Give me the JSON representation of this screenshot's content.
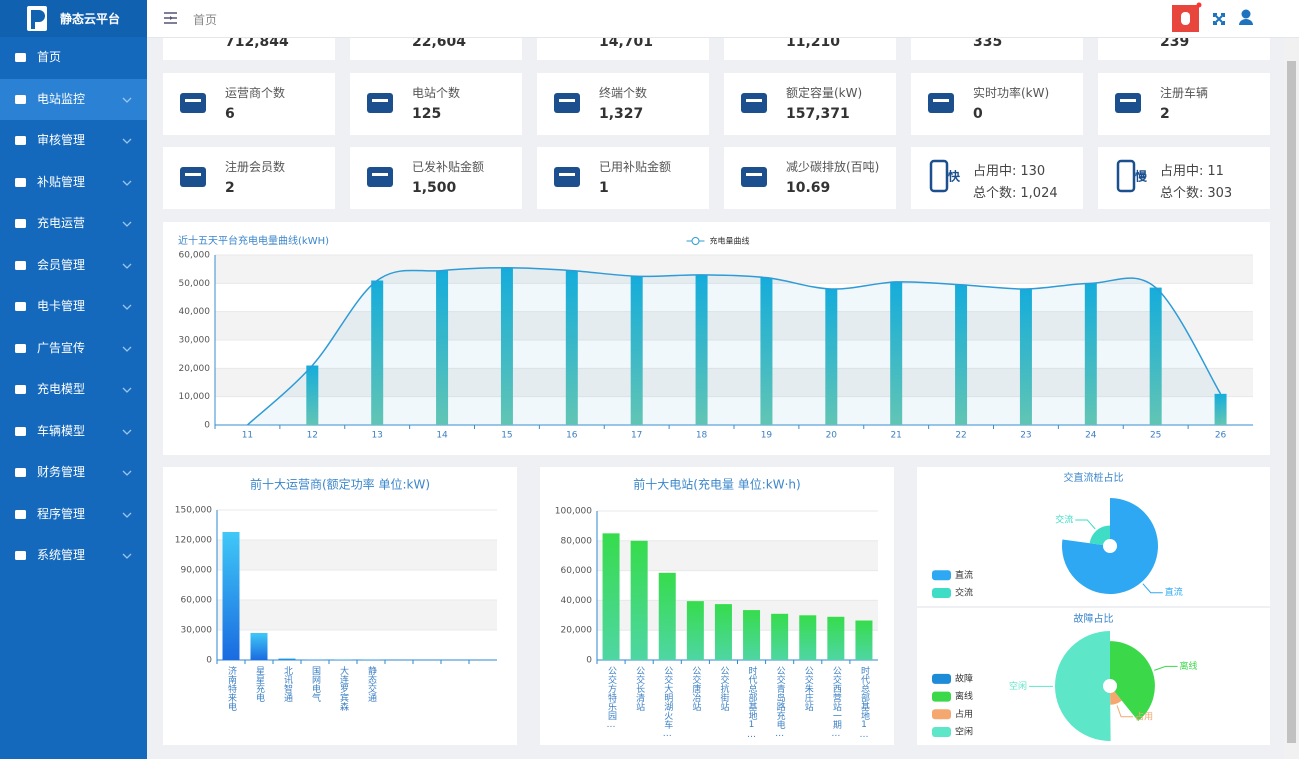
{
  "header": {
    "logo": "静态云平台",
    "breadcrumb": "首页"
  },
  "menu": [
    "首页",
    "电站监控",
    "审核管理",
    "补贴管理",
    "充电运营",
    "会员管理",
    "电卡管理",
    "广告宣传",
    "充电模型",
    "车辆模型",
    "财务管理",
    "程序管理",
    "系统管理"
  ],
  "top_cards": [
    "712,844",
    "22,604",
    "14,701",
    "11,210",
    "335",
    "239"
  ],
  "cards": [
    {
      "label": "运营商个数",
      "value": "6"
    },
    {
      "label": "电站个数",
      "value": "125"
    },
    {
      "label": "终端个数",
      "value": "1,327"
    },
    {
      "label": "额定容量(kW)",
      "value": "157,371"
    },
    {
      "label": "实时功率(kW)",
      "value": "0"
    },
    {
      "label": "注册车辆",
      "value": "2"
    },
    {
      "label": "注册会员数",
      "value": "2"
    },
    {
      "label": "已发补贴金额",
      "value": "1,500"
    },
    {
      "label": "已用补贴金额",
      "value": "1"
    },
    {
      "label": "减少碳排放(百吨)",
      "value": "10.69"
    }
  ],
  "pile_cards": [
    {
      "icon": "快",
      "occupied_label": "占用中:",
      "occupied": "130",
      "total_label": "总个数:",
      "total": "1,024"
    },
    {
      "icon": "慢",
      "occupied_label": "占用中:",
      "occupied": "11",
      "total_label": "总个数:",
      "total": "303"
    }
  ],
  "chart_data": [
    {
      "type": "line",
      "bars": true,
      "title": "近十五天平台充电电量曲线(kWH)",
      "legend": "top-center",
      "grid": true,
      "bar_colors": [
        "#14aedc",
        "#66c8b2"
      ],
      "categories": [
        "11",
        "12",
        "13",
        "14",
        "15",
        "16",
        "17",
        "18",
        "19",
        "20",
        "21",
        "22",
        "23",
        "24",
        "25",
        "26"
      ],
      "series": [
        {
          "name": "充电量曲线",
          "color": "#2e9bd6",
          "values": [
            0,
            21000,
            51000,
            54500,
            55500,
            54500,
            52500,
            53000,
            52000,
            48000,
            50500,
            49500,
            48000,
            50000,
            48500,
            11000
          ]
        }
      ],
      "ylim": [
        0,
        60000
      ],
      "yticks": [
        0,
        {
          "value": 10000,
          "label": "10,000"
        },
        {
          "value": 20000,
          "label": "20,000"
        },
        {
          "value": 30000,
          "label": "30,000"
        },
        {
          "value": 40000,
          "label": "40,000"
        },
        {
          "value": 50000,
          "label": "50,000"
        },
        {
          "value": 60000,
          "label": "60,000"
        }
      ]
    },
    {
      "type": "bar",
      "title": "前十大运营商(额定功率 单位:kW)",
      "grid": true,
      "colors": [
        "#40c8f7",
        "#1a6be0"
      ],
      "categories": [
        "济南特来电",
        "星星充电",
        "北讯智通",
        "国网电气",
        "大连罗宾森",
        "静态交通",
        null,
        null,
        null,
        null
      ],
      "values": [
        128000,
        27000,
        1500,
        500,
        300,
        200,
        0,
        0,
        0,
        0
      ],
      "ylim": [
        0,
        150000
      ],
      "yticks": [
        0,
        {
          "value": 30000,
          "label": "30,000"
        },
        {
          "value": 60000,
          "label": "60,000"
        },
        {
          "value": 90000,
          "label": "90,000"
        },
        {
          "value": 120000,
          "label": "120,000"
        },
        {
          "value": 150000,
          "label": "150,000"
        }
      ]
    },
    {
      "type": "bar",
      "title": "前十大电站(充电量 单位:kW·h)",
      "grid": true,
      "colors": [
        "#36dc4c",
        "#4fd6a4"
      ],
      "categories": [
        "公交方特乐园…",
        "公交长清站",
        "公交大明湖火车…",
        "公交唐冶站",
        "公交抗街站",
        "时代总部基地1…",
        "公交青岛路充电…",
        "公交朱庄站",
        "公交西营站一期…",
        "时代总部基地1…"
      ],
      "values": [
        85000,
        80000,
        58500,
        39500,
        37500,
        33500,
        31000,
        30000,
        29000,
        26500
      ],
      "ylim": [
        0,
        100000
      ],
      "yticks": [
        0,
        {
          "value": 20000,
          "label": "20,000"
        },
        {
          "value": 40000,
          "label": "40,000"
        },
        {
          "value": 60000,
          "label": "60,000"
        },
        {
          "value": 80000,
          "label": "80,000"
        },
        {
          "value": 100000,
          "label": "100,000"
        }
      ]
    },
    {
      "type": "pie",
      "rose": true,
      "title": "交直流桩占比",
      "legend": "bottom-left",
      "categories": [
        "直流",
        "交流"
      ],
      "values": [
        1024,
        303
      ],
      "colors": [
        "#2ea8f2",
        "#3fdcc6"
      ]
    },
    {
      "type": "pie",
      "rose": true,
      "title": "故障占比",
      "legend": "bottom-left",
      "categories": [
        "故障",
        "离线",
        "占用",
        "空闲"
      ],
      "values": [
        0,
        520,
        141,
        666
      ],
      "colors": [
        "#1d8cd8",
        "#3bd84a",
        "#f4a870",
        "#5ee6c9"
      ]
    }
  ]
}
